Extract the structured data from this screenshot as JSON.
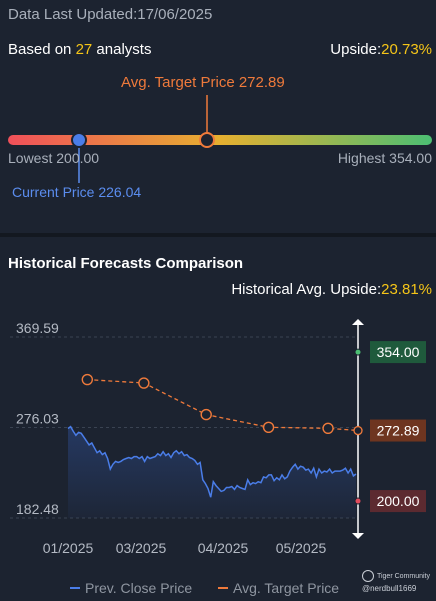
{
  "header": {
    "updated": "Data Last Updated:17/06/2025",
    "based_prefix": "Based on ",
    "analyst_count": "27",
    "based_suffix": " analysts",
    "upside_label": "Upside:",
    "upside_value": "20.73%"
  },
  "range": {
    "avg_target_label": "Avg. Target Price 272.89",
    "lowest_label": "Lowest 200.00",
    "highest_label": "Highest 354.00",
    "current_label": "Current Price 226.04",
    "low": 200.0,
    "high": 354.0,
    "current": 226.04,
    "avg_target": 272.89,
    "colors": {
      "low": "#f0505a",
      "mid": "#e6b030",
      "high": "#4cbf73"
    }
  },
  "historical": {
    "title": "Historical Forecasts Comparison",
    "upside_label": "Historical Avg. Upside:",
    "upside_value": "23.81%"
  },
  "chart_data": {
    "type": "line",
    "y_ticks": [
      "369.59",
      "276.03",
      "182.48"
    ],
    "ylim": [
      182.48,
      369.59
    ],
    "x_ticks": [
      "01/2025",
      "03/2025",
      "04/2025",
      "05/2025"
    ],
    "series": [
      {
        "name": "Prev. Close Price",
        "color": "#4a7de8",
        "values": [
          275,
          277,
          272,
          268,
          271,
          270,
          266,
          262,
          258,
          260,
          255,
          250,
          252,
          248,
          250,
          244,
          233,
          238,
          241,
          240,
          241,
          243,
          244,
          245,
          244,
          246,
          246,
          244,
          246,
          241,
          246,
          244,
          245,
          246,
          249,
          247,
          251,
          247,
          249,
          245,
          250,
          252,
          249,
          251,
          247,
          248,
          245,
          244,
          242,
          238,
          240,
          222,
          218,
          213,
          204,
          220,
          216,
          213,
          210,
          211,
          214,
          214,
          215,
          212,
          216,
          214,
          213,
          212,
          222,
          217,
          219,
          218,
          220,
          219,
          225,
          224,
          227,
          227,
          221,
          224,
          222,
          227,
          223,
          225,
          231,
          235,
          238,
          233,
          236,
          235,
          232,
          233,
          229,
          234,
          225,
          233,
          229,
          231,
          230,
          233,
          229,
          231,
          231,
          231,
          232,
          234,
          229,
          233,
          226,
          228
        ]
      },
      {
        "name": "Avg. Target Price",
        "color": "#ef7a3b",
        "points": [
          {
            "t": 0.0666,
            "v": 325.6
          },
          {
            "t": 0.2616,
            "v": 322.0
          },
          {
            "t": 0.4766,
            "v": 289.4
          },
          {
            "t": 0.6916,
            "v": 276.2
          },
          {
            "t": 0.8967,
            "v": 275.2
          },
          {
            "t": 1.0,
            "v": 272.89
          }
        ]
      }
    ],
    "price_tags": [
      {
        "value": "354.00",
        "y": 354.0,
        "bg": "#1f5a3c",
        "marker": "#4cbf73"
      },
      {
        "value": "272.89",
        "y": 272.89,
        "bg": "#6e3520",
        "marker": "#ef7a3b"
      },
      {
        "value": "200.00",
        "y": 200.0,
        "bg": "#5c2a30",
        "marker": "#e04b5c"
      }
    ],
    "legend": [
      "Prev. Close Price",
      "Avg. Target Price"
    ]
  },
  "watermark": {
    "brand": "Tiger Community",
    "user": "@nerdbull1669"
  }
}
